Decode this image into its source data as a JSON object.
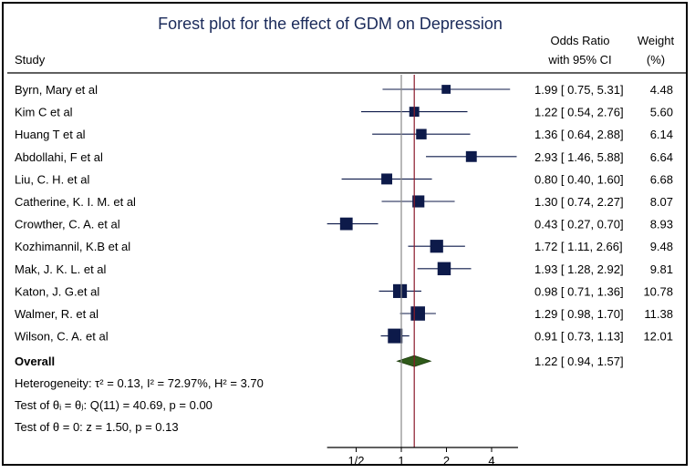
{
  "chart_data": {
    "type": "forest",
    "title": "Forest plot for the effect of GDM on Depression",
    "study_header": "Study",
    "or_header_line1": "Odds Ratio",
    "or_header_line2": "with 95% CI",
    "weight_header_line1": "Weight",
    "weight_header_line2": "(%)",
    "x_scale": "log2",
    "x_range": [
      0.32,
      6.0
    ],
    "x_ticks": [
      {
        "value": 0.5,
        "label": "1/2"
      },
      {
        "value": 1,
        "label": "1"
      },
      {
        "value": 2,
        "label": "2"
      },
      {
        "value": 4,
        "label": "4"
      }
    ],
    "null_line": 1,
    "studies": [
      {
        "name": "Byrn, Mary et al",
        "or": 1.99,
        "lo": 0.75,
        "hi": 5.31,
        "or_text": "1.99 [ 0.75, 5.31]",
        "weight": 4.48,
        "weight_text": "4.48"
      },
      {
        "name": "Kim C et al",
        "or": 1.22,
        "lo": 0.54,
        "hi": 2.76,
        "or_text": "1.22 [ 0.54, 2.76]",
        "weight": 5.6,
        "weight_text": "5.60"
      },
      {
        "name": "Huang T et al",
        "or": 1.36,
        "lo": 0.64,
        "hi": 2.88,
        "or_text": "1.36 [ 0.64, 2.88]",
        "weight": 6.14,
        "weight_text": "6.14"
      },
      {
        "name": "Abdollahi, F et al",
        "or": 2.93,
        "lo": 1.46,
        "hi": 5.88,
        "or_text": "2.93 [ 1.46, 5.88]",
        "weight": 6.64,
        "weight_text": "6.64"
      },
      {
        "name": "Liu, C. H. et al",
        "or": 0.8,
        "lo": 0.4,
        "hi": 1.6,
        "or_text": "0.80 [ 0.40, 1.60]",
        "weight": 6.68,
        "weight_text": "6.68"
      },
      {
        "name": "Catherine, K. I. M. et al",
        "or": 1.3,
        "lo": 0.74,
        "hi": 2.27,
        "or_text": "1.30 [ 0.74, 2.27]",
        "weight": 8.07,
        "weight_text": "8.07"
      },
      {
        "name": "Crowther, C. A. et al",
        "or": 0.43,
        "lo": 0.27,
        "hi": 0.7,
        "or_text": "0.43 [ 0.27, 0.70]",
        "weight": 8.93,
        "weight_text": "8.93"
      },
      {
        "name": "Kozhimannil, K.B et al",
        "or": 1.72,
        "lo": 1.11,
        "hi": 2.66,
        "or_text": "1.72 [ 1.11, 2.66]",
        "weight": 9.48,
        "weight_text": "9.48"
      },
      {
        "name": "Mak, J. K. L. et al",
        "or": 1.93,
        "lo": 1.28,
        "hi": 2.92,
        "or_text": "1.93 [ 1.28, 2.92]",
        "weight": 9.81,
        "weight_text": "9.81"
      },
      {
        "name": "Katon, J. G.et al",
        "or": 0.98,
        "lo": 0.71,
        "hi": 1.36,
        "or_text": "0.98 [ 0.71, 1.36]",
        "weight": 10.78,
        "weight_text": "10.78"
      },
      {
        "name": "Walmer, R. et al",
        "or": 1.29,
        "lo": 0.98,
        "hi": 1.7,
        "or_text": "1.29 [ 0.98, 1.70]",
        "weight": 11.38,
        "weight_text": "11.38"
      },
      {
        "name": "Wilson, C. A. et al",
        "or": 0.91,
        "lo": 0.73,
        "hi": 1.13,
        "or_text": "0.91 [ 0.73, 1.13]",
        "weight": 12.01,
        "weight_text": "12.01"
      }
    ],
    "overall": {
      "name": "Overall",
      "or": 1.22,
      "lo": 0.94,
      "hi": 1.57,
      "or_text": "1.22 [ 0.94, 1.57]"
    },
    "footnotes": [
      "Heterogeneity: τ² = 0.13, I² = 72.97%, H² = 3.70",
      "Test of θᵢ = θⱼ: Q(11) = 40.69, p = 0.00",
      "Test of θ = 0: z = 1.50, p = 0.13"
    ],
    "colors": {
      "box": "#0d1a4a",
      "ci_line": "#0d1a4a",
      "diamond": "#2f5a1a",
      "null_line": "#8a8a8a",
      "overall_line": "#8b1a2a",
      "title": "#1a2a5a"
    }
  }
}
